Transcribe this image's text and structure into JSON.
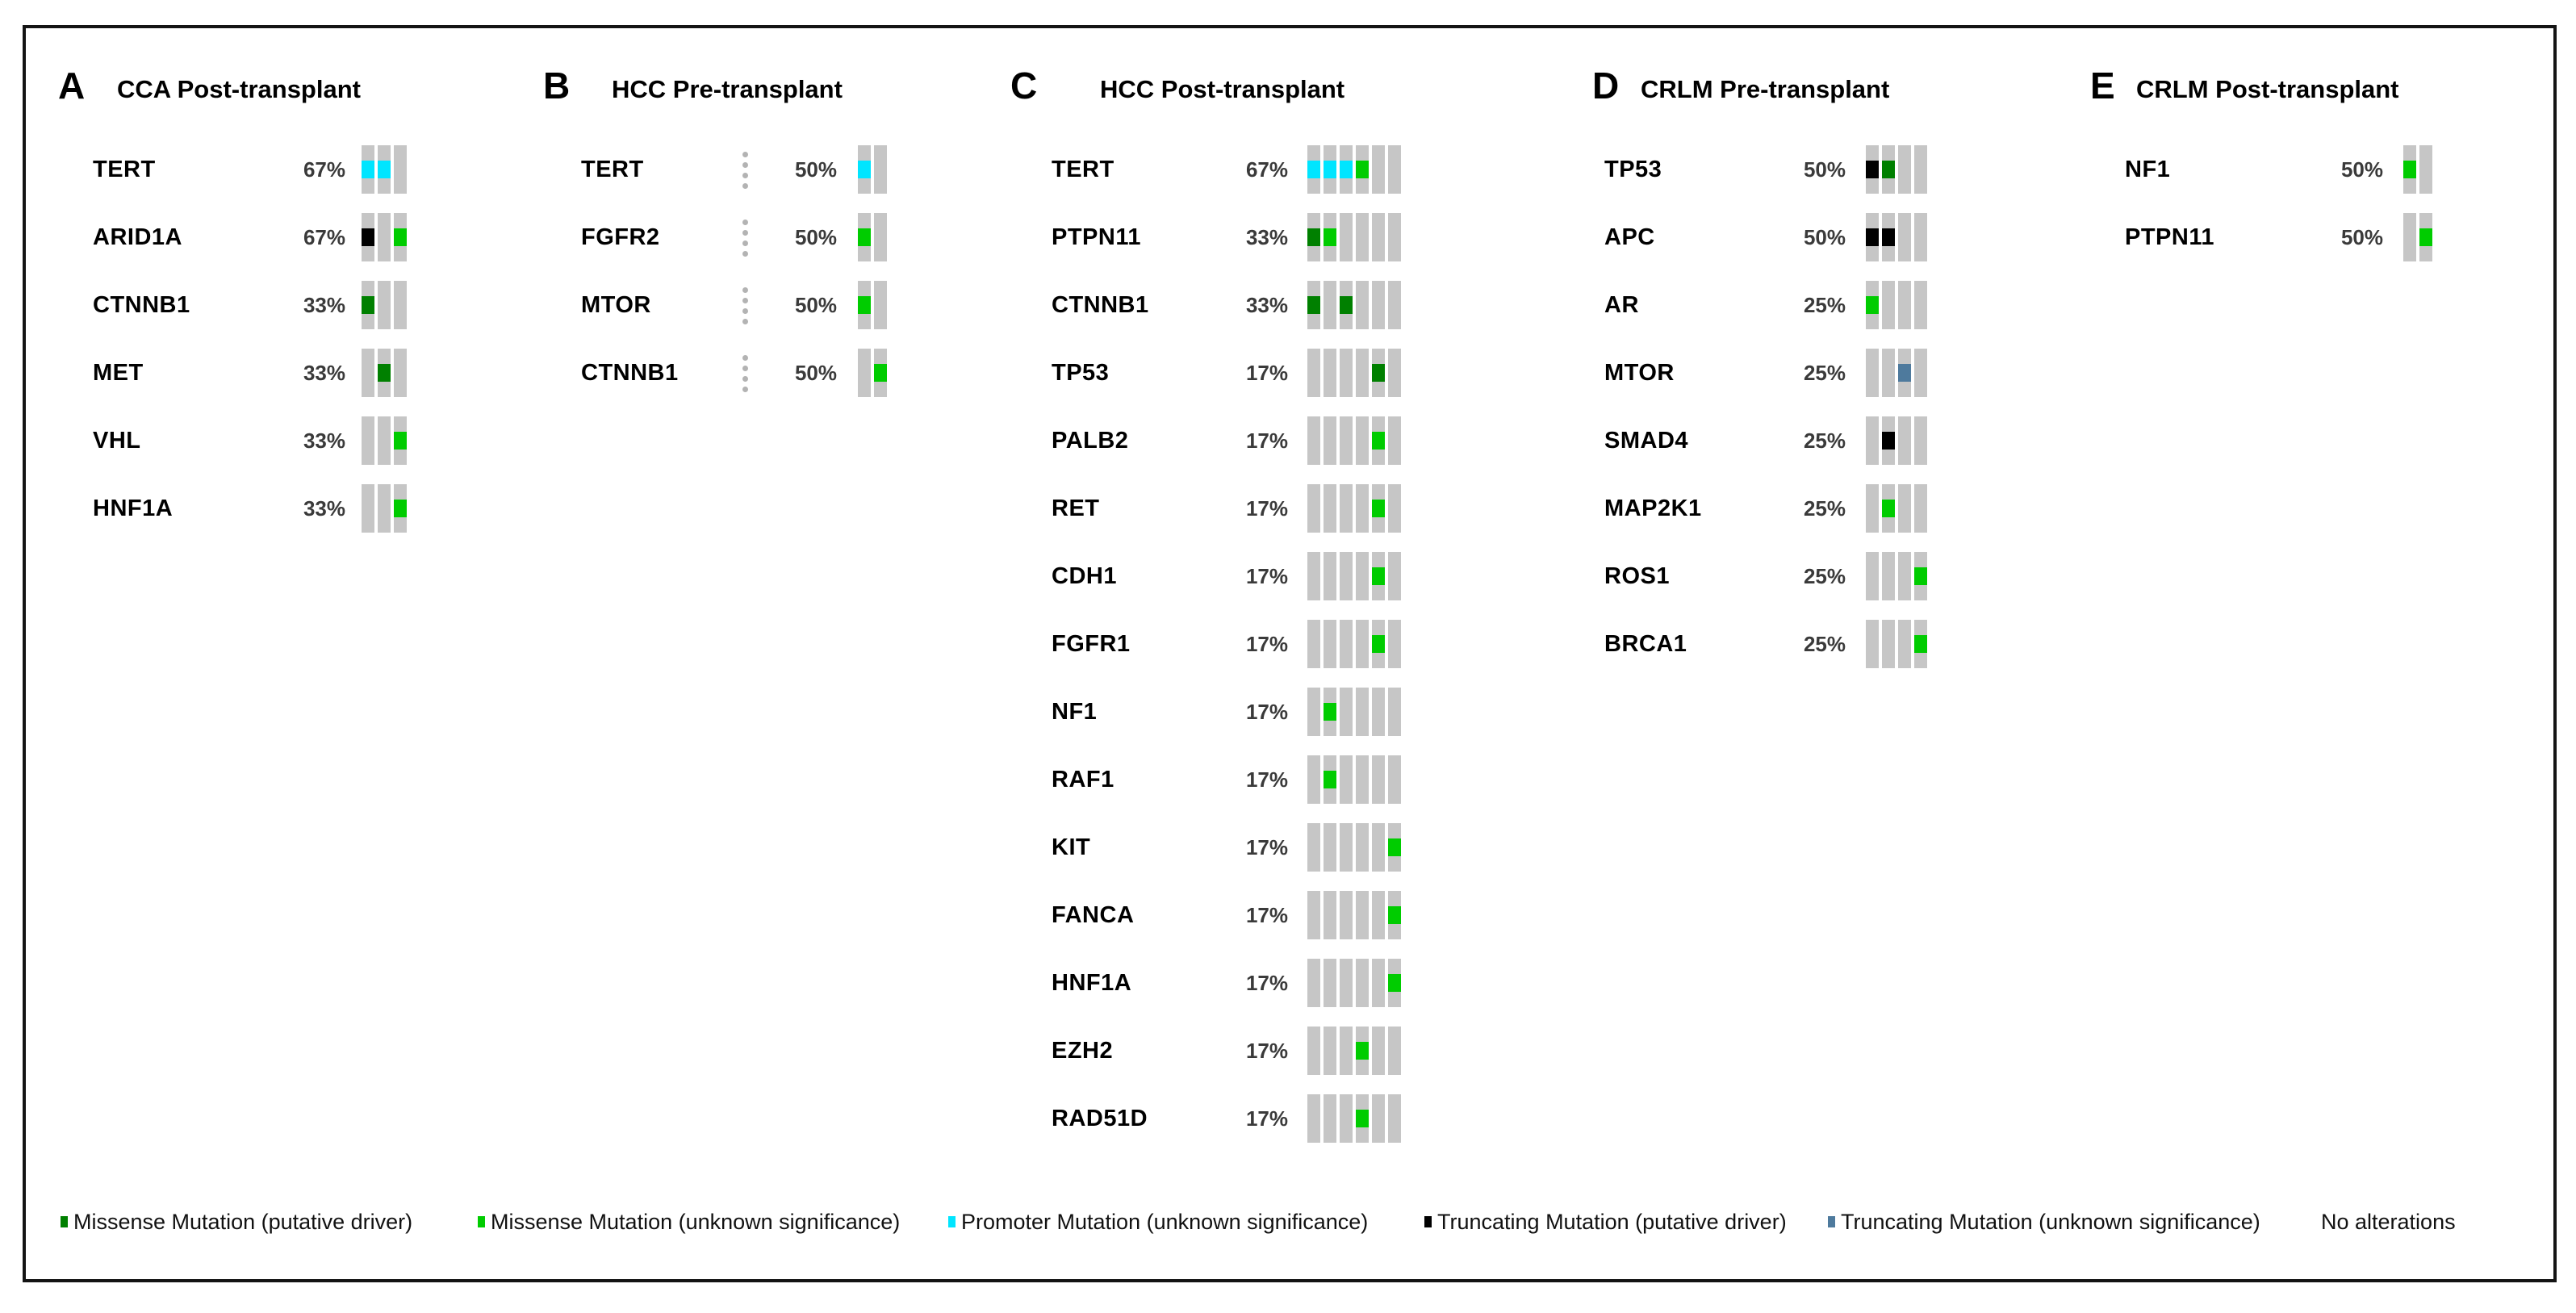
{
  "page": {
    "background": "#ffffff"
  },
  "chart_data": {
    "type": "heatmap",
    "subtype": "oncoprint",
    "colors": {
      "missense_driver": "#008000",
      "missense_vus": "#00CC00",
      "promoter": "#00E5FF",
      "trunc_driver": "#000000",
      "trunc_vus": "#4E7A9D",
      "none": "#C6C6C6",
      "dot": "#B3B3B3"
    },
    "panels": [
      {
        "letter": "A",
        "title": "CCA Post-transplant",
        "n_samples": 3,
        "sample_separator_dots": false,
        "rows": [
          {
            "gene": "TERT",
            "pct": "67%",
            "cells": [
              "promoter",
              "promoter",
              "none"
            ]
          },
          {
            "gene": "ARID1A",
            "pct": "67%",
            "cells": [
              "trunc_driver",
              "none",
              "missense_vus"
            ]
          },
          {
            "gene": "CTNNB1",
            "pct": "33%",
            "cells": [
              "missense_driver",
              "none",
              "none"
            ]
          },
          {
            "gene": "MET",
            "pct": "33%",
            "cells": [
              "none",
              "missense_driver",
              "none"
            ]
          },
          {
            "gene": "VHL",
            "pct": "33%",
            "cells": [
              "none",
              "none",
              "missense_vus"
            ]
          },
          {
            "gene": "HNF1A",
            "pct": "33%",
            "cells": [
              "none",
              "none",
              "missense_vus"
            ]
          }
        ]
      },
      {
        "letter": "B",
        "title": "HCC Pre-transplant",
        "n_samples": 2,
        "sample_separator_dots": true,
        "rows": [
          {
            "gene": "TERT",
            "pct": "50%",
            "cells": [
              "promoter",
              "none"
            ]
          },
          {
            "gene": "FGFR2",
            "pct": "50%",
            "cells": [
              "missense_vus",
              "none"
            ]
          },
          {
            "gene": "MTOR",
            "pct": "50%",
            "cells": [
              "missense_vus",
              "none"
            ]
          },
          {
            "gene": "CTNNB1",
            "pct": "50%",
            "cells": [
              "none",
              "missense_vus"
            ]
          }
        ]
      },
      {
        "letter": "C",
        "title": "HCC Post-transplant",
        "n_samples": 6,
        "sample_separator_dots": false,
        "rows": [
          {
            "gene": "TERT",
            "pct": "67%",
            "cells": [
              "promoter",
              "promoter",
              "promoter",
              "missense_vus",
              "none",
              "none"
            ]
          },
          {
            "gene": "PTPN11",
            "pct": "33%",
            "cells": [
              "missense_driver",
              "missense_vus",
              "none",
              "none",
              "none",
              "none"
            ]
          },
          {
            "gene": "CTNNB1",
            "pct": "33%",
            "cells": [
              "missense_driver",
              "none",
              "missense_driver",
              "none",
              "none",
              "none"
            ]
          },
          {
            "gene": "TP53",
            "pct": "17%",
            "cells": [
              "none",
              "none",
              "none",
              "none",
              "missense_driver",
              "none"
            ]
          },
          {
            "gene": "PALB2",
            "pct": "17%",
            "cells": [
              "none",
              "none",
              "none",
              "none",
              "missense_vus",
              "none"
            ]
          },
          {
            "gene": "RET",
            "pct": "17%",
            "cells": [
              "none",
              "none",
              "none",
              "none",
              "missense_vus",
              "none"
            ]
          },
          {
            "gene": "CDH1",
            "pct": "17%",
            "cells": [
              "none",
              "none",
              "none",
              "none",
              "missense_vus",
              "none"
            ]
          },
          {
            "gene": "FGFR1",
            "pct": "17%",
            "cells": [
              "none",
              "none",
              "none",
              "none",
              "missense_vus",
              "none"
            ]
          },
          {
            "gene": "NF1",
            "pct": "17%",
            "cells": [
              "none",
              "missense_vus",
              "none",
              "none",
              "none",
              "none"
            ]
          },
          {
            "gene": "RAF1",
            "pct": "17%",
            "cells": [
              "none",
              "missense_vus",
              "none",
              "none",
              "none",
              "none"
            ]
          },
          {
            "gene": "KIT",
            "pct": "17%",
            "cells": [
              "none",
              "none",
              "none",
              "none",
              "none",
              "missense_vus"
            ]
          },
          {
            "gene": "FANCA",
            "pct": "17%",
            "cells": [
              "none",
              "none",
              "none",
              "none",
              "none",
              "missense_vus"
            ]
          },
          {
            "gene": "HNF1A",
            "pct": "17%",
            "cells": [
              "none",
              "none",
              "none",
              "none",
              "none",
              "missense_vus"
            ]
          },
          {
            "gene": "EZH2",
            "pct": "17%",
            "cells": [
              "none",
              "none",
              "none",
              "missense_vus",
              "none",
              "none"
            ]
          },
          {
            "gene": "RAD51D",
            "pct": "17%",
            "cells": [
              "none",
              "none",
              "none",
              "missense_vus",
              "none",
              "none"
            ]
          }
        ]
      },
      {
        "letter": "D",
        "title": "CRLM Pre-transplant",
        "n_samples": 4,
        "sample_separator_dots": false,
        "rows": [
          {
            "gene": "TP53",
            "pct": "50%",
            "cells": [
              "trunc_driver",
              "missense_driver",
              "none",
              "none"
            ]
          },
          {
            "gene": "APC",
            "pct": "50%",
            "cells": [
              "trunc_driver",
              "trunc_driver",
              "none",
              "none"
            ]
          },
          {
            "gene": "AR",
            "pct": "25%",
            "cells": [
              "missense_vus",
              "none",
              "none",
              "none"
            ]
          },
          {
            "gene": "MTOR",
            "pct": "25%",
            "cells": [
              "none",
              "none",
              "trunc_vus",
              "none"
            ]
          },
          {
            "gene": "SMAD4",
            "pct": "25%",
            "cells": [
              "none",
              "trunc_driver",
              "none",
              "none"
            ]
          },
          {
            "gene": "MAP2K1",
            "pct": "25%",
            "cells": [
              "none",
              "missense_vus",
              "none",
              "none"
            ]
          },
          {
            "gene": "ROS1",
            "pct": "25%",
            "cells": [
              "none",
              "none",
              "none",
              "missense_vus"
            ]
          },
          {
            "gene": "BRCA1",
            "pct": "25%",
            "cells": [
              "none",
              "none",
              "none",
              "missense_vus"
            ]
          }
        ]
      },
      {
        "letter": "E",
        "title": "CRLM Post-transplant",
        "n_samples": 2,
        "sample_separator_dots": false,
        "rows": [
          {
            "gene": "NF1",
            "pct": "50%",
            "cells": [
              "missense_vus",
              "none"
            ]
          },
          {
            "gene": "PTPN11",
            "pct": "50%",
            "cells": [
              "none",
              "missense_vus"
            ]
          }
        ]
      }
    ],
    "legend": [
      {
        "label": "Missense Mutation (putative driver)",
        "type": "missense_driver"
      },
      {
        "label": "Missense Mutation (unknown significance)",
        "type": "missense_vus"
      },
      {
        "label": "Promoter Mutation (unknown significance)",
        "type": "promoter"
      },
      {
        "label": "Truncating Mutation (putative driver)",
        "type": "trunc_driver"
      },
      {
        "label": "Truncating Mutation (unknown significance)",
        "type": "trunc_vus"
      },
      {
        "label": "No alterations",
        "type": "none"
      }
    ]
  }
}
